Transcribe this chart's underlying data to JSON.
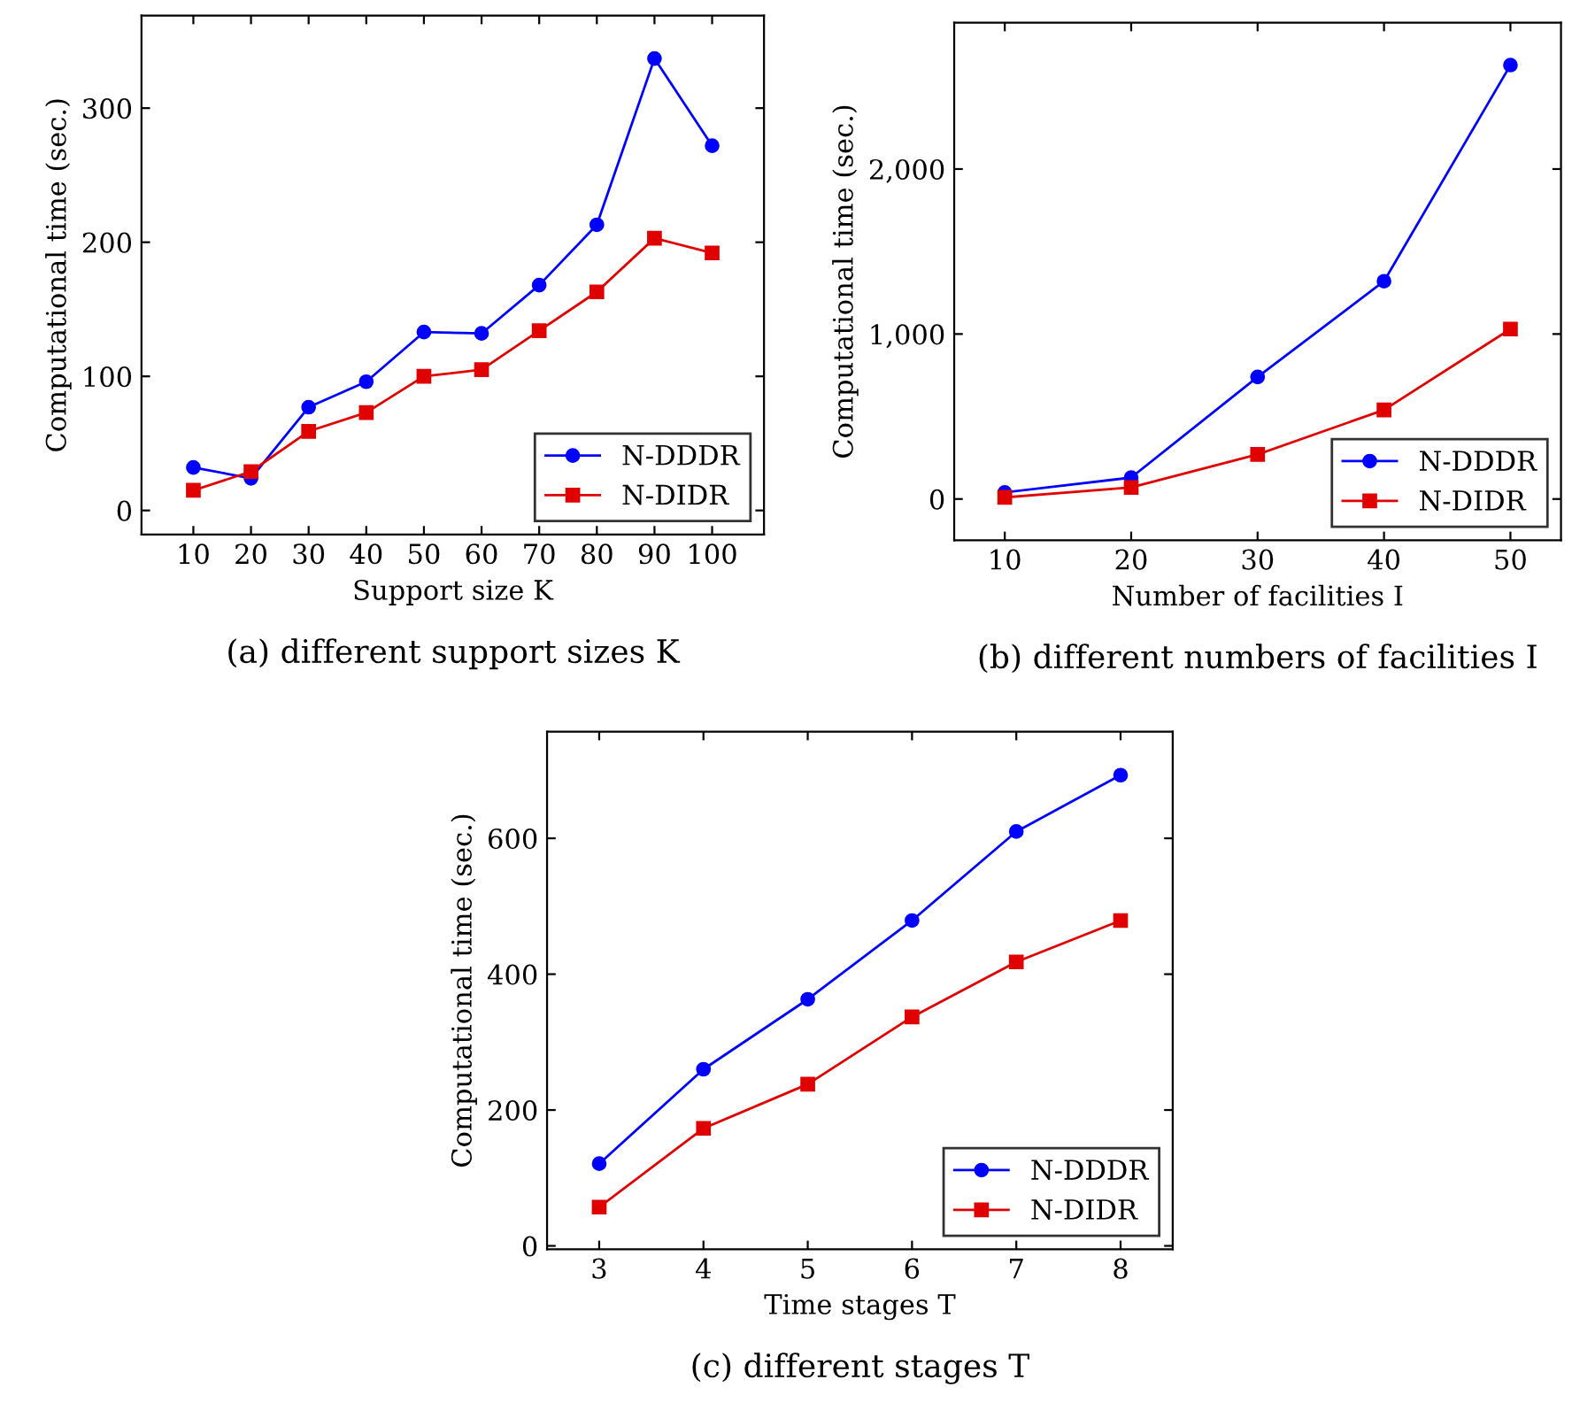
{
  "chart_data": [
    {
      "type": "line",
      "xlabel": "Support size K",
      "ylabel": "Computational time (sec.)",
      "annotations": [
        "(a) different support sizes K"
      ],
      "x": [
        10,
        20,
        30,
        40,
        50,
        60,
        70,
        80,
        90,
        100
      ],
      "xlim": [
        1,
        109
      ],
      "xticks": [
        10,
        20,
        30,
        40,
        50,
        60,
        70,
        80,
        90,
        100
      ],
      "ylim": [
        -18,
        369
      ],
      "yticks": [
        0,
        100,
        200,
        300
      ],
      "series": [
        {
          "name": "N-DDDR",
          "color": "#0000ff",
          "marker": "circle",
          "values": [
            32,
            24,
            77,
            96,
            133,
            132,
            168,
            213,
            337,
            272
          ]
        },
        {
          "name": "N-DIDR",
          "color": "#e00000",
          "marker": "square",
          "values": [
            15,
            29,
            59,
            73,
            100,
            105,
            134,
            163,
            203,
            192
          ]
        }
      ],
      "legend": "bottom right",
      "grid": false,
      "line_style": "solid"
    },
    {
      "type": "line",
      "xlabel": "Number of facilities I",
      "ylabel": "Computational time (sec.)",
      "annotations": [
        "(b) different numbers of facilities I"
      ],
      "x": [
        10,
        20,
        30,
        40,
        50
      ],
      "xlim": [
        6,
        54
      ],
      "xticks": [
        10,
        20,
        30,
        40,
        50
      ],
      "ylim": [
        -250,
        2887
      ],
      "yticks": [
        0,
        {
          "value": 1000,
          "label": "1,000"
        },
        {
          "value": 2000,
          "label": "2,000"
        }
      ],
      "series": [
        {
          "name": "N-DDDR",
          "color": "#0000ff",
          "marker": "circle",
          "values": [
            40,
            130,
            740,
            1320,
            2630
          ]
        },
        {
          "name": "N-DIDR",
          "color": "#e00000",
          "marker": "square",
          "values": [
            10,
            70,
            270,
            540,
            1030
          ]
        }
      ],
      "legend": "bottom right",
      "grid": false,
      "line_style": "solid"
    },
    {
      "type": "line",
      "xlabel": "Time stages T",
      "ylabel": "Computational time (sec.)",
      "annotations": [
        "(c) different stages T"
      ],
      "x": [
        3,
        4,
        5,
        6,
        7,
        8
      ],
      "xlim": [
        2.5,
        8.5
      ],
      "xticks": [
        3,
        4,
        5,
        6,
        7,
        8
      ],
      "ylim": [
        -5,
        757
      ],
      "yticks": [
        0,
        200,
        400,
        600
      ],
      "series": [
        {
          "name": "N-DDDR",
          "color": "#0000ff",
          "marker": "circle",
          "values": [
            121,
            260,
            363,
            479,
            610,
            693
          ]
        },
        {
          "name": "N-DIDR",
          "color": "#e00000",
          "marker": "square",
          "values": [
            57,
            173,
            238,
            337,
            418,
            479
          ]
        }
      ],
      "legend": "bottom right",
      "grid": false,
      "line_style": "solid"
    }
  ]
}
